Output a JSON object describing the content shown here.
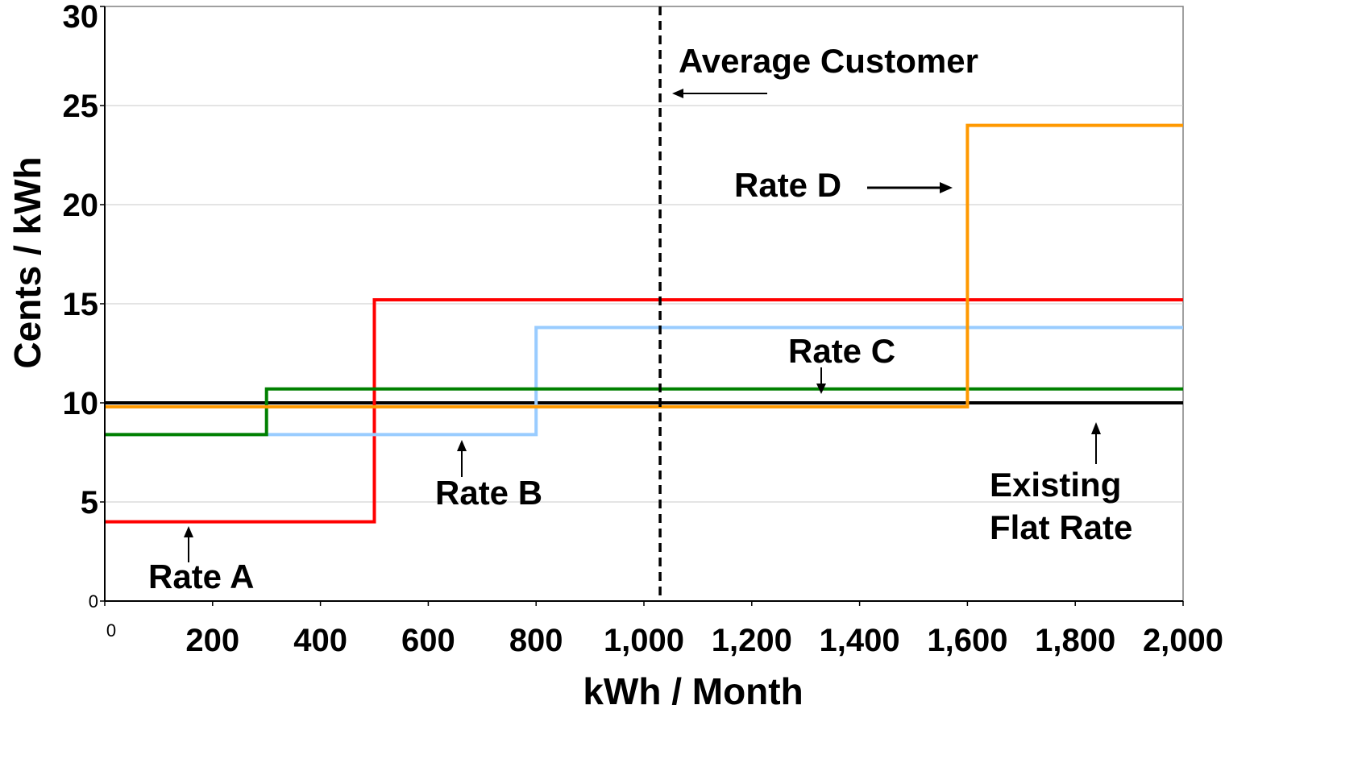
{
  "chart_data": {
    "type": "line",
    "step": true,
    "xlabel": "kWh / Month",
    "ylabel": "Cents / kWh",
    "xlim": [
      0,
      2000
    ],
    "ylim": [
      0,
      30
    ],
    "x_ticks": [
      "0",
      "200",
      "400",
      "600",
      "800",
      "1,000",
      "1,200",
      "1,400",
      "1,600",
      "1,800",
      "2,000"
    ],
    "y_ticks": [
      "0",
      "5",
      "10",
      "15",
      "20",
      "25",
      "30"
    ],
    "grid": true,
    "series": [
      {
        "name": "Existing Flat Rate",
        "color": "#000000",
        "x": [
          0,
          2000
        ],
        "y": [
          10,
          10
        ]
      },
      {
        "name": "Rate A",
        "color": "#ff0000",
        "x": [
          0,
          500,
          500,
          2000
        ],
        "y": [
          4,
          4,
          15.2,
          15.2
        ]
      },
      {
        "name": "Rate B",
        "color": "#99ccff",
        "x": [
          0,
          800,
          800,
          2000
        ],
        "y": [
          8.4,
          8.4,
          13.8,
          13.8
        ]
      },
      {
        "name": "Rate C",
        "color": "#008000",
        "x": [
          0,
          300,
          300,
          2000
        ],
        "y": [
          8.4,
          8.4,
          10.7,
          10.7
        ]
      },
      {
        "name": "Rate D",
        "color": "#ff9900",
        "x": [
          0,
          1600,
          1600,
          2000
        ],
        "y": [
          9.8,
          9.8,
          24,
          24
        ]
      }
    ],
    "reference_line": {
      "label": "Average Customer",
      "x": 1030,
      "style": "dashed",
      "color": "#000000"
    },
    "annotations": {
      "rate_a": "Rate A",
      "rate_b": "Rate B",
      "rate_c": "Rate C",
      "rate_d": "Rate D",
      "average_customer": "Average Customer",
      "flat_rate_line1": "Existing",
      "flat_rate_line2": "Flat Rate"
    }
  }
}
